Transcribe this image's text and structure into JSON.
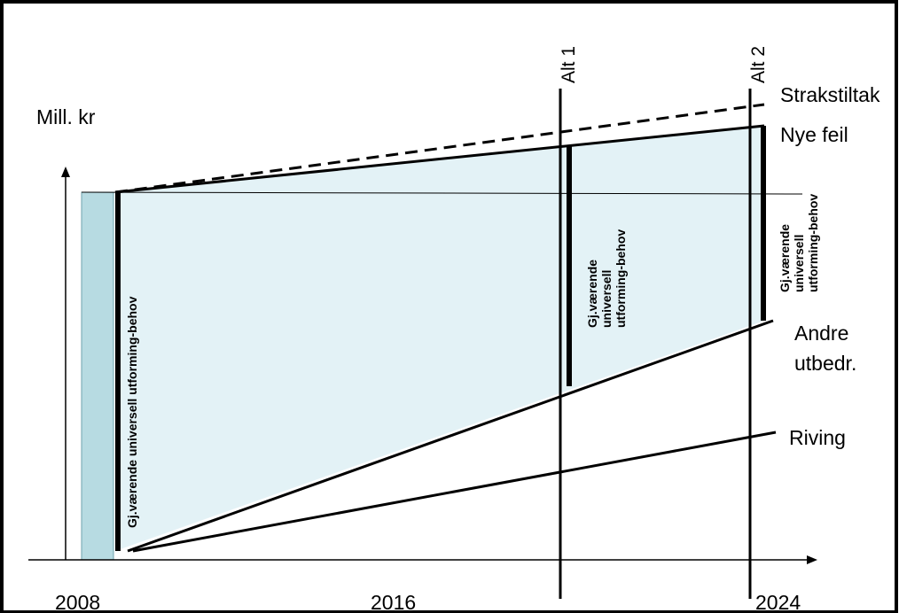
{
  "labels": {
    "y_axis": "Mill. kr",
    "lines": {
      "strakstiltak": "Strakstiltak",
      "nye_feil": "Nye feil",
      "andre_utbedr_line1": "Andre",
      "andre_utbedr_line2": "utbedr.",
      "riving": "Riving"
    },
    "alternatives": {
      "alt1": "Alt 1",
      "alt2": "Alt 2"
    },
    "years": {
      "y2008": "2008",
      "y2016": "2016",
      "y2024": "2024"
    },
    "need_labels": {
      "left": "Gj.værende universell utforming-behov",
      "mid_line1": "Gj.værende",
      "mid_line2": "universell",
      "mid_line3": "utforming-behov",
      "right_line1": "Gj.værende",
      "right_line2": "universell",
      "right_line3": "utforming-behov"
    }
  },
  "colors": {
    "frame": "#000000",
    "initial_bar_fill": "#b7dbe2",
    "need_area_fill": "#e3f2f6",
    "line": "#000000"
  }
}
